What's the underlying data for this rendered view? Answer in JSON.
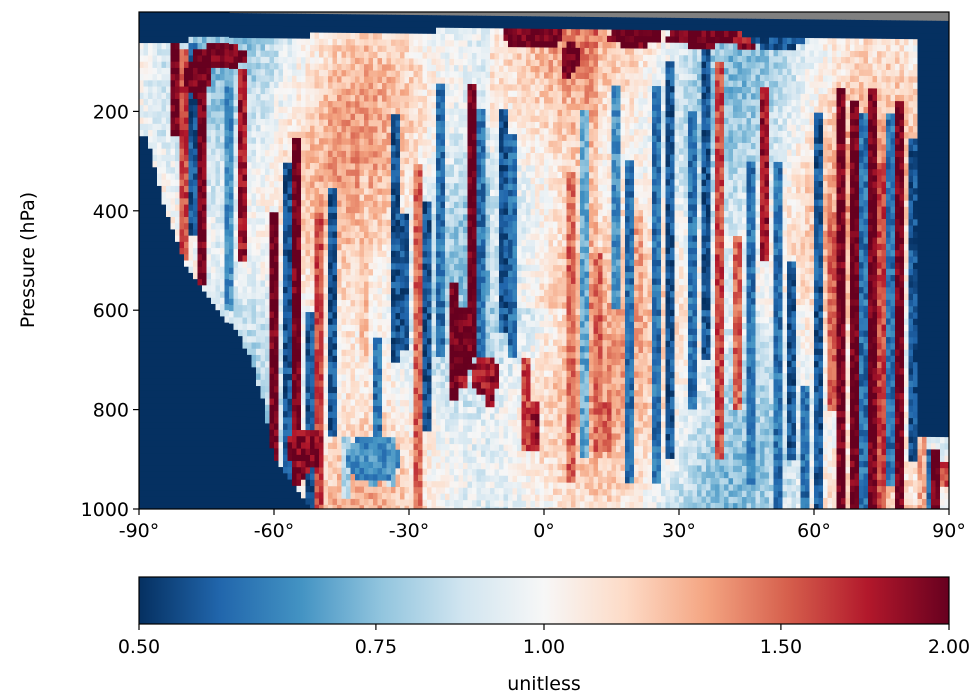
{
  "chart_data": {
    "type": "heatmap",
    "title": "",
    "xlabel": "",
    "ylabel": "Pressure (hPa)",
    "xlim": [
      -90,
      90
    ],
    "ylim": [
      1000,
      0
    ],
    "x_ticks": [
      {
        "value": -90,
        "label": "-90°"
      },
      {
        "value": -60,
        "label": "-60°"
      },
      {
        "value": -30,
        "label": "-30°"
      },
      {
        "value": 0,
        "label": "0°"
      },
      {
        "value": 30,
        "label": "30°"
      },
      {
        "value": 60,
        "label": "60°"
      },
      {
        "value": 90,
        "label": "90°"
      }
    ],
    "y_ticks": [
      {
        "value": 200,
        "label": "200"
      },
      {
        "value": 400,
        "label": "400"
      },
      {
        "value": 600,
        "label": "600"
      },
      {
        "value": 800,
        "label": "800"
      },
      {
        "value": 1000,
        "label": "1000"
      }
    ],
    "colormap": "RdBu_r",
    "colormap_stops": [
      "#053061",
      "#2166ac",
      "#4393c3",
      "#92c5de",
      "#d1e5f0",
      "#f7f7f7",
      "#fddbc7",
      "#f4a582",
      "#d6604d",
      "#b2182b",
      "#67001f"
    ],
    "missing_color": "#808080",
    "colorbar": {
      "label": "unitless",
      "range": [
        0.5,
        2.0
      ],
      "ticks": [
        {
          "value": 0.5,
          "label": "0.50"
        },
        {
          "value": 0.75,
          "label": "0.75"
        },
        {
          "value": 1.0,
          "label": "1.00"
        },
        {
          "value": 1.5,
          "label": "1.50"
        },
        {
          "value": 2.0,
          "label": "2.00"
        }
      ]
    },
    "background_fill": {
      "value": 0.5,
      "southern_edge_latitude": [
        -52,
        -60,
        -62,
        -65,
        -68,
        -72,
        -76,
        -80,
        -84,
        -88
      ],
      "southern_edge_pressure": [
        1000,
        900,
        800,
        700,
        650,
        600,
        560,
        500,
        400,
        250
      ]
    },
    "stripes": [
      {
        "lat": -82,
        "value": 2.0,
        "p_top": 60,
        "p_bottom": 250
      },
      {
        "lat": -80,
        "value": 1.6,
        "p_top": 80,
        "p_bottom": 500
      },
      {
        "lat": -78,
        "value": 0.55,
        "p_top": 60,
        "p_bottom": 450
      },
      {
        "lat": -76,
        "value": 2.0,
        "p_top": 70,
        "p_bottom": 550
      },
      {
        "lat": -70,
        "value": 0.65,
        "p_top": 150,
        "p_bottom": 600
      },
      {
        "lat": -67,
        "value": 1.8,
        "p_top": 120,
        "p_bottom": 500
      },
      {
        "lat": -60,
        "value": 2.0,
        "p_top": 400,
        "p_bottom": 1000
      },
      {
        "lat": -57,
        "value": 0.55,
        "p_top": 300,
        "p_bottom": 1000
      },
      {
        "lat": -55,
        "value": 2.0,
        "p_top": 250,
        "p_bottom": 950
      },
      {
        "lat": -53,
        "value": 1.9,
        "p_top": 850,
        "p_bottom": 940
      },
      {
        "lat": -52,
        "value": 0.55,
        "p_top": 600,
        "p_bottom": 1000
      },
      {
        "lat": -50,
        "value": 1.6,
        "p_top": 400,
        "p_bottom": 1000
      },
      {
        "lat": -47,
        "value": 0.55,
        "p_top": 350,
        "p_bottom": 850
      },
      {
        "lat": -44,
        "value": 0.8,
        "p_top": 850,
        "p_bottom": 980
      },
      {
        "lat": -40,
        "value": 1.2,
        "p_top": 300,
        "p_bottom": 700
      },
      {
        "lat": -37,
        "value": 0.6,
        "p_top": 650,
        "p_bottom": 850
      },
      {
        "lat": -34,
        "value": 0.8,
        "p_top": 850,
        "p_bottom": 950
      },
      {
        "lat": -33,
        "value": 0.55,
        "p_top": 200,
        "p_bottom": 700
      },
      {
        "lat": -31,
        "value": 0.55,
        "p_top": 400,
        "p_bottom": 680
      },
      {
        "lat": -28,
        "value": 1.5,
        "p_top": 300,
        "p_bottom": 1000
      },
      {
        "lat": -26,
        "value": 0.55,
        "p_top": 380,
        "p_bottom": 850
      },
      {
        "lat": -23,
        "value": 0.6,
        "p_top": 150,
        "p_bottom": 700
      },
      {
        "lat": -20,
        "value": 2.0,
        "p_top": 550,
        "p_bottom": 780
      },
      {
        "lat": -18,
        "value": 1.8,
        "p_top": 620,
        "p_bottom": 760
      },
      {
        "lat": -16,
        "value": 2.0,
        "p_top": 150,
        "p_bottom": 700
      },
      {
        "lat": -14,
        "value": 0.6,
        "p_top": 200,
        "p_bottom": 750
      },
      {
        "lat": -12,
        "value": 1.8,
        "p_top": 700,
        "p_bottom": 800
      },
      {
        "lat": -9,
        "value": 0.55,
        "p_top": 200,
        "p_bottom": 650
      },
      {
        "lat": -7,
        "value": 0.6,
        "p_top": 250,
        "p_bottom": 700
      },
      {
        "lat": -4,
        "value": 1.6,
        "p_top": 700,
        "p_bottom": 880
      },
      {
        "lat": -2,
        "value": 1.8,
        "p_top": 780,
        "p_bottom": 880
      },
      {
        "lat": 5,
        "value": 2.0,
        "p_top": 80,
        "p_bottom": 140
      },
      {
        "lat": 6,
        "value": 1.5,
        "p_top": 320,
        "p_bottom": 950
      },
      {
        "lat": 9,
        "value": 0.7,
        "p_top": 200,
        "p_bottom": 900
      },
      {
        "lat": 12,
        "value": 1.5,
        "p_top": 480,
        "p_bottom": 900
      },
      {
        "lat": 14,
        "value": 1.5,
        "p_top": 780,
        "p_bottom": 880
      },
      {
        "lat": 16,
        "value": 0.65,
        "p_top": 150,
        "p_bottom": 600
      },
      {
        "lat": 19,
        "value": 0.6,
        "p_top": 300,
        "p_bottom": 950
      },
      {
        "lat": 21,
        "value": 1.3,
        "p_top": 400,
        "p_bottom": 700
      },
      {
        "lat": 25,
        "value": 0.6,
        "p_top": 150,
        "p_bottom": 950
      },
      {
        "lat": 28,
        "value": 0.55,
        "p_top": 100,
        "p_bottom": 900
      },
      {
        "lat": 33,
        "value": 0.6,
        "p_top": 200,
        "p_bottom": 800
      },
      {
        "lat": 36,
        "value": 0.55,
        "p_top": 50,
        "p_bottom": 700
      },
      {
        "lat": 39,
        "value": 1.6,
        "p_top": 100,
        "p_bottom": 900
      },
      {
        "lat": 43,
        "value": 1.5,
        "p_top": 450,
        "p_bottom": 800
      },
      {
        "lat": 46,
        "value": 0.6,
        "p_top": 300,
        "p_bottom": 950
      },
      {
        "lat": 49,
        "value": 1.8,
        "p_top": 150,
        "p_bottom": 500
      },
      {
        "lat": 52,
        "value": 0.6,
        "p_top": 300,
        "p_bottom": 1000
      },
      {
        "lat": 55,
        "value": 0.55,
        "p_top": 500,
        "p_bottom": 900
      },
      {
        "lat": 58,
        "value": 0.6,
        "p_top": 750,
        "p_bottom": 1000
      },
      {
        "lat": 61,
        "value": 0.55,
        "p_top": 200,
        "p_bottom": 1000
      },
      {
        "lat": 64,
        "value": 1.5,
        "p_top": 400,
        "p_bottom": 800
      },
      {
        "lat": 66,
        "value": 2.0,
        "p_top": 150,
        "p_bottom": 1000
      },
      {
        "lat": 69,
        "value": 2.0,
        "p_top": 180,
        "p_bottom": 1000
      },
      {
        "lat": 71,
        "value": 0.6,
        "p_top": 200,
        "p_bottom": 1000
      },
      {
        "lat": 73,
        "value": 2.0,
        "p_top": 150,
        "p_bottom": 1000
      },
      {
        "lat": 75,
        "value": 1.6,
        "p_top": 300,
        "p_bottom": 1000
      },
      {
        "lat": 77,
        "value": 0.6,
        "p_top": 200,
        "p_bottom": 950
      },
      {
        "lat": 79,
        "value": 2.0,
        "p_top": 180,
        "p_bottom": 1000
      },
      {
        "lat": 82,
        "value": 0.55,
        "p_top": 250,
        "p_bottom": 900
      },
      {
        "lat": 84,
        "value": 1.3,
        "p_top": 850,
        "p_bottom": 1000
      },
      {
        "lat": 86,
        "value": 0.6,
        "p_top": 880,
        "p_bottom": 1000
      },
      {
        "lat": 87,
        "value": 2.0,
        "p_top": 880,
        "p_bottom": 1000
      },
      {
        "lat": 89,
        "value": 1.6,
        "p_top": 900,
        "p_bottom": 950
      }
    ],
    "blobs": [
      {
        "lat": -72,
        "p": 90,
        "value": 2.0,
        "dlat": 6,
        "dp": 25
      },
      {
        "lat": -77,
        "p": 130,
        "value": 2.0,
        "dlat": 3,
        "dp": 40
      },
      {
        "lat": -53,
        "p": 880,
        "value": 1.9,
        "dlat": 4,
        "dp": 45
      },
      {
        "lat": -38,
        "p": 900,
        "value": 0.65,
        "dlat": 6,
        "dp": 50
      },
      {
        "lat": -18,
        "p": 660,
        "value": 2.0,
        "dlat": 3,
        "dp": 70
      },
      {
        "lat": -13,
        "p": 730,
        "value": 1.8,
        "dlat": 3,
        "dp": 40
      },
      {
        "lat": -5,
        "p": 50,
        "value": 2.0,
        "dlat": 4,
        "dp": 25
      },
      {
        "lat": 0,
        "p": 50,
        "value": 2.0,
        "dlat": 4,
        "dp": 20
      },
      {
        "lat": 6,
        "p": 90,
        "value": 2.0,
        "dlat": 2,
        "dp": 35
      },
      {
        "lat": 20,
        "p": 50,
        "value": 2.0,
        "dlat": 6,
        "dp": 20
      },
      {
        "lat": 35,
        "p": 50,
        "value": 2.0,
        "dlat": 8,
        "dp": 20
      },
      {
        "lat": 45,
        "p": 50,
        "value": 1.8,
        "dlat": 3,
        "dp": 25
      },
      {
        "lat": 52,
        "p": 50,
        "value": 0.55,
        "dlat": 6,
        "dp": 30
      }
    ]
  }
}
